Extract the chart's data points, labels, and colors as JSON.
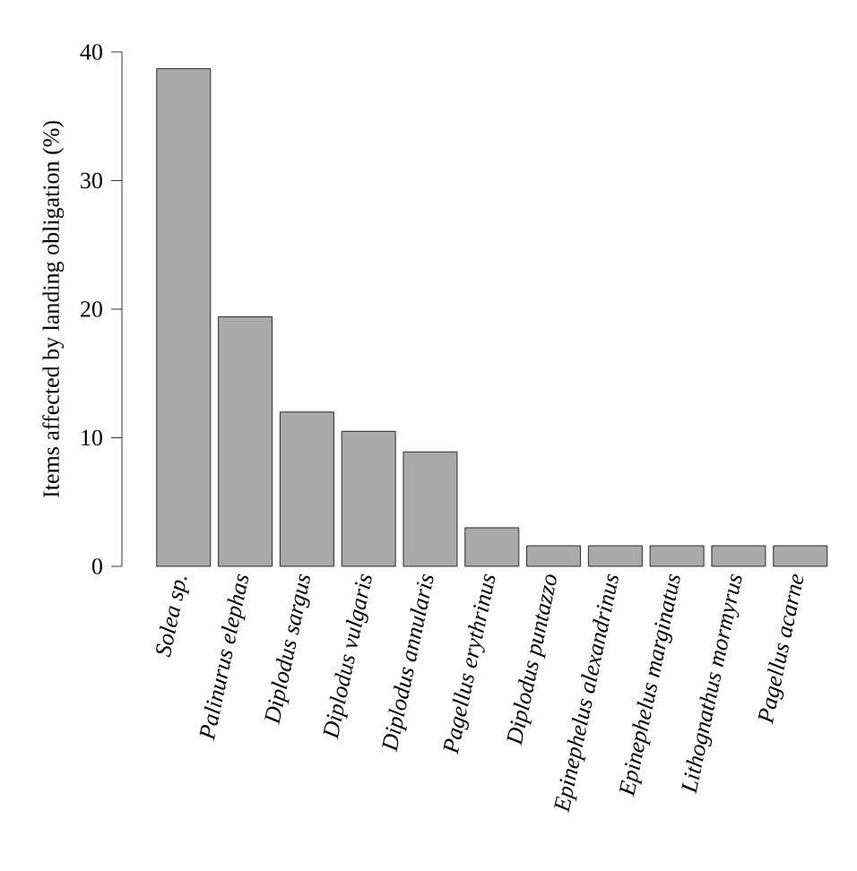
{
  "chart_data": {
    "type": "bar",
    "ylabel": "Items affected by landing obligation (%)",
    "categories": [
      "Solea sp.",
      "Palinurus elephas",
      "Diplodus sargus",
      "Diplodus vulgaris",
      "Diplodus annularis",
      "Pagellus erythrinus",
      "Diplodus puntazzo",
      "Epinephelus alexandrinus",
      "Epinephelus marginatus",
      "Lithognathus mormyrus",
      "Pagellus acarne"
    ],
    "values": [
      38.7,
      19.4,
      12.0,
      10.5,
      8.9,
      3.0,
      1.6,
      1.6,
      1.6,
      1.6,
      1.6
    ],
    "color": "#aaaaaa",
    "ylim": [
      0,
      40
    ],
    "yticks": [
      0,
      10,
      20,
      30,
      40
    ]
  }
}
